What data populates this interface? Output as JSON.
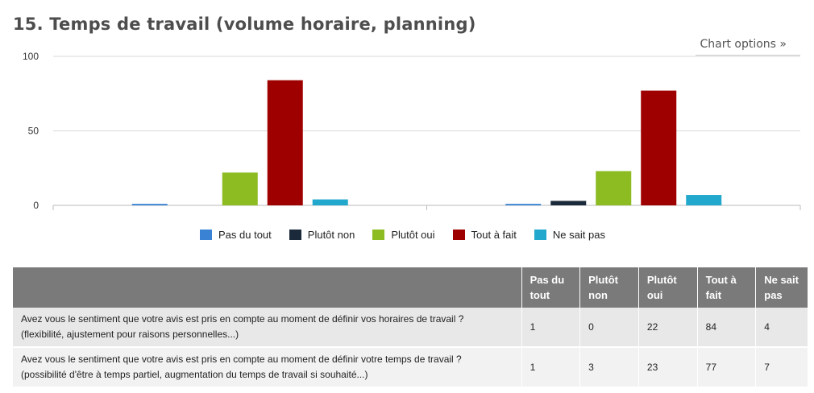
{
  "title": "15. Temps de travail (volume horaire, planning)",
  "chart_options_label": "Chart options »",
  "chart_data": {
    "type": "bar",
    "categories": [
      "Avez vous le sentiment que votre avis est pris en compte au moment de définir vos horaires de travail ? (flexibilité, ajustement pour raisons personnelles...)",
      "Avez vous le sentiment que votre avis est pris en compte au moment de définir votre temps de travail ? (possibilité d'être à temps partiel, augmentation du temps de travail si souhaité...)"
    ],
    "series": [
      {
        "name": "Pas du tout",
        "color": "#3a83d4",
        "values": [
          1,
          1
        ]
      },
      {
        "name": "Plutôt non",
        "color": "#1a2a3a",
        "values": [
          0,
          3
        ]
      },
      {
        "name": "Plutôt oui",
        "color": "#8cbb22",
        "values": [
          22,
          23
        ]
      },
      {
        "name": "Tout à fait",
        "color": "#9e0000",
        "values": [
          84,
          77
        ]
      },
      {
        "name": "Ne sait pas",
        "color": "#22a8cc",
        "values": [
          4,
          7
        ]
      }
    ],
    "ylim": [
      0,
      100
    ],
    "yticks": [
      0,
      50,
      100
    ],
    "grid": true,
    "legend": "bottom"
  },
  "table": {
    "headers": [
      "",
      "Pas du tout",
      "Plutôt non",
      "Plutôt oui",
      "Tout à fait",
      "Ne sait pas"
    ],
    "header_lines": [
      [
        ""
      ],
      [
        "Pas du",
        "tout"
      ],
      [
        "Plutôt",
        "non"
      ],
      [
        "Plutôt",
        "oui"
      ],
      [
        "Tout à",
        "fait"
      ],
      [
        "Ne sait",
        "pas"
      ]
    ],
    "rows": [
      {
        "question_line1": "Avez vous le sentiment que votre avis est pris en compte au moment de définir vos horaires de travail ?",
        "question_line2": "(flexibilité, ajustement pour raisons personnelles...)",
        "values": [
          "1",
          "0",
          "22",
          "84",
          "4"
        ]
      },
      {
        "question_line1": "Avez vous le sentiment que votre avis est pris en compte au moment de définir votre temps de travail ?",
        "question_line2": "(possibilité d'être à temps partiel, augmentation du temps de travail si souhaité...)",
        "values": [
          "1",
          "3",
          "23",
          "77",
          "7"
        ]
      }
    ]
  }
}
